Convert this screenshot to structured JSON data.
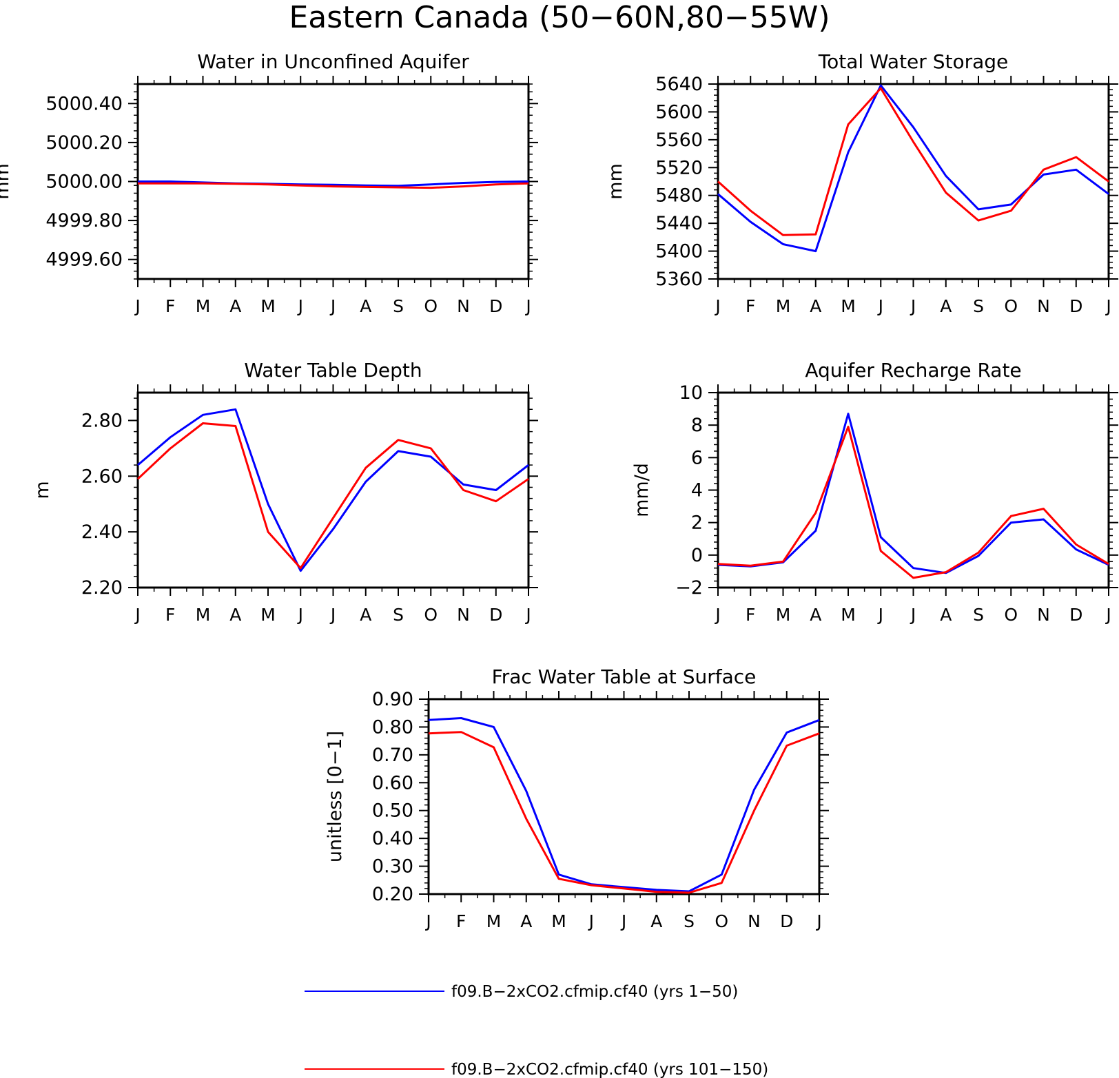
{
  "title": "Eastern Canada (50−60N,80−55W)",
  "legend": {
    "placement": "bottom-center",
    "entries": [
      {
        "label": "f09.B−2xCO2.cfmip.cf40 (yrs 1−50)",
        "color": "#0000ff"
      },
      {
        "label": "f09.B−2xCO2.cfmip.cf40 (yrs 101−150)",
        "color": "#ff0000"
      }
    ]
  },
  "chart_data": [
    {
      "type": "line",
      "title": "Water in Unconfined Aquifer",
      "ylabel": "mm",
      "xlabel": "",
      "categories": [
        "J",
        "F",
        "M",
        "A",
        "M",
        "J",
        "J",
        "A",
        "S",
        "O",
        "N",
        "D",
        "J"
      ],
      "ylim": [
        4999.5,
        5000.5
      ],
      "yticks": [
        4999.6,
        4999.8,
        5000.0,
        5000.2,
        5000.4
      ],
      "ytick_labels": [
        "4999.60",
        "4999.80",
        "5000.00",
        "5000.20",
        "5000.40"
      ],
      "grid": false,
      "series": [
        {
          "name": "f09.B−2xCO2.cfmip.cf40 (yrs 1−50)",
          "color": "#0000ff",
          "values": [
            5000.0,
            5000.0,
            4999.995,
            4999.99,
            4999.988,
            4999.985,
            4999.983,
            4999.98,
            4999.978,
            4999.985,
            4999.993,
            4999.998,
            5000.0
          ]
        },
        {
          "name": "f09.B−2xCO2.cfmip.cf40 (yrs 101−150)",
          "color": "#ff0000",
          "values": [
            4999.99,
            4999.99,
            4999.99,
            4999.988,
            4999.985,
            4999.98,
            4999.975,
            4999.972,
            4999.97,
            4999.968,
            4999.975,
            4999.985,
            4999.99
          ]
        }
      ]
    },
    {
      "type": "line",
      "title": "Total Water Storage",
      "ylabel": "mm",
      "xlabel": "",
      "categories": [
        "J",
        "F",
        "M",
        "A",
        "M",
        "J",
        "J",
        "A",
        "S",
        "O",
        "N",
        "D",
        "J"
      ],
      "ylim": [
        5360,
        5640
      ],
      "yticks": [
        5360,
        5400,
        5440,
        5480,
        5520,
        5560,
        5600,
        5640
      ],
      "ytick_labels": [
        "5360",
        "5400",
        "5440",
        "5480",
        "5520",
        "5560",
        "5600",
        "5640"
      ],
      "grid": false,
      "series": [
        {
          "name": "f09.B−2xCO2.cfmip.cf40 (yrs 1−50)",
          "color": "#0000ff",
          "values": [
            5482,
            5442,
            5410,
            5400,
            5542,
            5638,
            5578,
            5508,
            5460,
            5467,
            5510,
            5517,
            5482
          ]
        },
        {
          "name": "f09.B−2xCO2.cfmip.cf40 (yrs 101−150)",
          "color": "#ff0000",
          "values": [
            5500,
            5458,
            5423,
            5424,
            5582,
            5634,
            5557,
            5484,
            5444,
            5458,
            5517,
            5535,
            5500
          ]
        }
      ]
    },
    {
      "type": "line",
      "title": "Water Table Depth",
      "ylabel": "m",
      "xlabel": "",
      "categories": [
        "J",
        "F",
        "M",
        "A",
        "M",
        "J",
        "J",
        "A",
        "S",
        "O",
        "N",
        "D",
        "J"
      ],
      "ylim": [
        2.2,
        2.9
      ],
      "yticks": [
        2.2,
        2.4,
        2.6,
        2.8
      ],
      "ytick_labels": [
        "2.20",
        "2.40",
        "2.60",
        "2.80"
      ],
      "grid": false,
      "series": [
        {
          "name": "f09.B−2xCO2.cfmip.cf40 (yrs 1−50)",
          "color": "#0000ff",
          "values": [
            2.64,
            2.74,
            2.82,
            2.84,
            2.5,
            2.26,
            2.41,
            2.58,
            2.69,
            2.67,
            2.57,
            2.55,
            2.64
          ]
        },
        {
          "name": "f09.B−2xCO2.cfmip.cf40 (yrs 101−150)",
          "color": "#ff0000",
          "values": [
            2.59,
            2.7,
            2.79,
            2.78,
            2.4,
            2.27,
            2.45,
            2.63,
            2.73,
            2.7,
            2.55,
            2.51,
            2.59
          ]
        }
      ]
    },
    {
      "type": "line",
      "title": "Aquifer Recharge Rate",
      "ylabel": "mm/d",
      "xlabel": "",
      "categories": [
        "J",
        "F",
        "M",
        "A",
        "M",
        "J",
        "J",
        "A",
        "S",
        "O",
        "N",
        "D",
        "J"
      ],
      "ylim": [
        -2,
        10
      ],
      "yticks": [
        -2,
        0,
        2,
        4,
        6,
        8,
        10
      ],
      "ytick_labels": [
        "−2",
        "0",
        "2",
        "4",
        "6",
        "8",
        "10"
      ],
      "grid": false,
      "series": [
        {
          "name": "f09.B−2xCO2.cfmip.cf40 (yrs 1−50)",
          "color": "#0000ff",
          "values": [
            -0.6,
            -0.7,
            -0.45,
            1.5,
            8.7,
            1.1,
            -0.8,
            -1.1,
            -0.05,
            2.0,
            2.2,
            0.35,
            -0.6
          ]
        },
        {
          "name": "f09.B−2xCO2.cfmip.cf40 (yrs 101−150)",
          "color": "#ff0000",
          "values": [
            -0.55,
            -0.65,
            -0.4,
            2.6,
            7.9,
            0.25,
            -1.4,
            -1.05,
            0.15,
            2.4,
            2.85,
            0.65,
            -0.55
          ]
        }
      ]
    },
    {
      "type": "line",
      "title": "Frac Water Table at Surface",
      "ylabel": "unitless [0−1]",
      "xlabel": "",
      "categories": [
        "J",
        "F",
        "M",
        "A",
        "M",
        "J",
        "J",
        "A",
        "S",
        "O",
        "N",
        "D",
        "J"
      ],
      "ylim": [
        0.2,
        0.9
      ],
      "yticks": [
        0.2,
        0.3,
        0.4,
        0.5,
        0.6,
        0.7,
        0.8,
        0.9
      ],
      "ytick_labels": [
        "0.20",
        "0.30",
        "0.40",
        "0.50",
        "0.60",
        "0.70",
        "0.80",
        "0.90"
      ],
      "grid": false,
      "series": [
        {
          "name": "f09.B−2xCO2.cfmip.cf40 (yrs 1−50)",
          "color": "#0000ff",
          "values": [
            0.825,
            0.832,
            0.8,
            0.57,
            0.27,
            0.235,
            0.225,
            0.215,
            0.21,
            0.27,
            0.575,
            0.78,
            0.825
          ]
        },
        {
          "name": "f09.B−2xCO2.cfmip.cf40 (yrs 101−150)",
          "color": "#ff0000",
          "values": [
            0.777,
            0.782,
            0.727,
            0.47,
            0.255,
            0.232,
            0.22,
            0.208,
            0.205,
            0.24,
            0.5,
            0.733,
            0.777
          ]
        }
      ]
    }
  ]
}
